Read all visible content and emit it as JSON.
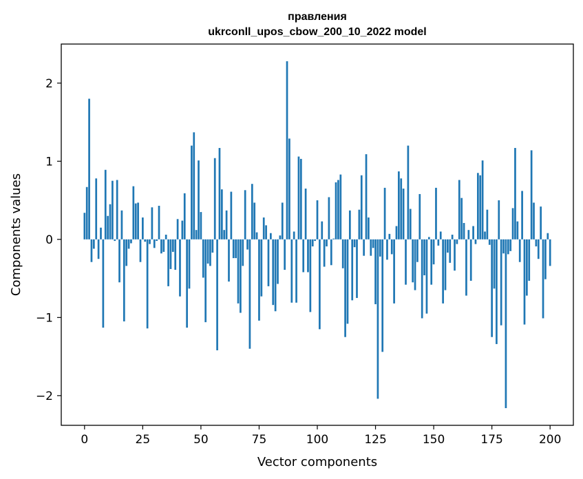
{
  "chart_data": {
    "type": "bar",
    "title_line1": "правления",
    "title_line2": "ukrconll_upos_cbow_200_10_2022 model",
    "xlabel": "Vector components",
    "ylabel": "Components values",
    "xlim": [
      -10,
      210
    ],
    "ylim": [
      -2.38,
      2.5
    ],
    "x_ticks": [
      0,
      25,
      50,
      75,
      100,
      125,
      150,
      175,
      200
    ],
    "x_tick_labels": [
      "0",
      "25",
      "50",
      "75",
      "100",
      "125",
      "150",
      "175",
      "200"
    ],
    "y_ticks": [
      -2,
      -1,
      0,
      1,
      2
    ],
    "y_tick_labels": [
      "−2",
      "−1",
      "0",
      "1",
      "2"
    ],
    "bar_color": "#1f77b4",
    "values": [
      0.34,
      0.67,
      1.8,
      -0.29,
      -0.12,
      0.78,
      -0.25,
      0.15,
      -1.13,
      0.89,
      0.3,
      0.45,
      0.75,
      -0.02,
      0.76,
      -0.55,
      0.37,
      -1.05,
      -0.34,
      -0.12,
      -0.05,
      0.68,
      0.46,
      0.47,
      -0.29,
      0.28,
      -0.03,
      -1.14,
      -0.06,
      0.41,
      -0.11,
      -0.02,
      0.43,
      -0.18,
      -0.16,
      0.06,
      -0.6,
      -0.38,
      -0.16,
      -0.39,
      0.26,
      -0.73,
      0.24,
      0.59,
      -1.13,
      -0.63,
      1.2,
      1.37,
      0.12,
      1.01,
      0.35,
      -0.49,
      -1.06,
      -0.31,
      -0.34,
      -0.17,
      1.04,
      -1.42,
      1.17,
      0.64,
      0.12,
      0.37,
      -0.54,
      0.61,
      -0.24,
      -0.24,
      -0.82,
      -0.94,
      -0.34,
      0.63,
      -0.13,
      -1.4,
      0.71,
      0.47,
      0.09,
      -1.04,
      -0.73,
      0.28,
      0.18,
      -0.6,
      0.08,
      -0.84,
      -0.92,
      -0.57,
      0.05,
      0.47,
      -0.39,
      2.28,
      1.29,
      -0.81,
      0.1,
      -0.81,
      1.06,
      1.03,
      -0.42,
      0.65,
      -0.42,
      -0.93,
      -0.09,
      -0.02,
      0.5,
      -1.15,
      0.23,
      -0.35,
      -0.09,
      0.54,
      -0.33,
      0.01,
      0.73,
      0.76,
      0.83,
      -0.37,
      -1.25,
      -1.08,
      0.37,
      -0.78,
      -0.1,
      -0.75,
      0.38,
      0.82,
      -0.21,
      1.09,
      0.28,
      -0.21,
      -0.11,
      -0.83,
      -2.04,
      -0.22,
      -1.44,
      0.66,
      -0.26,
      0.07,
      -0.19,
      -0.82,
      0.17,
      0.87,
      0.78,
      0.65,
      -0.58,
      1.2,
      0.39,
      -0.55,
      -0.65,
      -0.29,
      0.58,
      -1.01,
      -0.46,
      -0.95,
      0.03,
      -0.58,
      -0.32,
      0.66,
      -0.08,
      0.1,
      -0.82,
      -0.65,
      -0.17,
      -0.3,
      0.06,
      -0.4,
      -0.06,
      0.76,
      0.53,
      0.21,
      -0.72,
      0.12,
      -0.53,
      0.17,
      -0.06,
      0.85,
      0.82,
      1.01,
      0.1,
      0.38,
      -0.07,
      -1.25,
      -0.63,
      -1.34,
      0.5,
      -1.1,
      -0.18,
      -2.16,
      -0.19,
      -0.15,
      0.4,
      1.17,
      0.23,
      -0.29,
      0.62,
      -1.09,
      -0.72,
      -0.53,
      1.14,
      0.47,
      -0.09,
      -0.25,
      0.42,
      -1.01,
      -0.51,
      0.08,
      -0.34
    ]
  }
}
